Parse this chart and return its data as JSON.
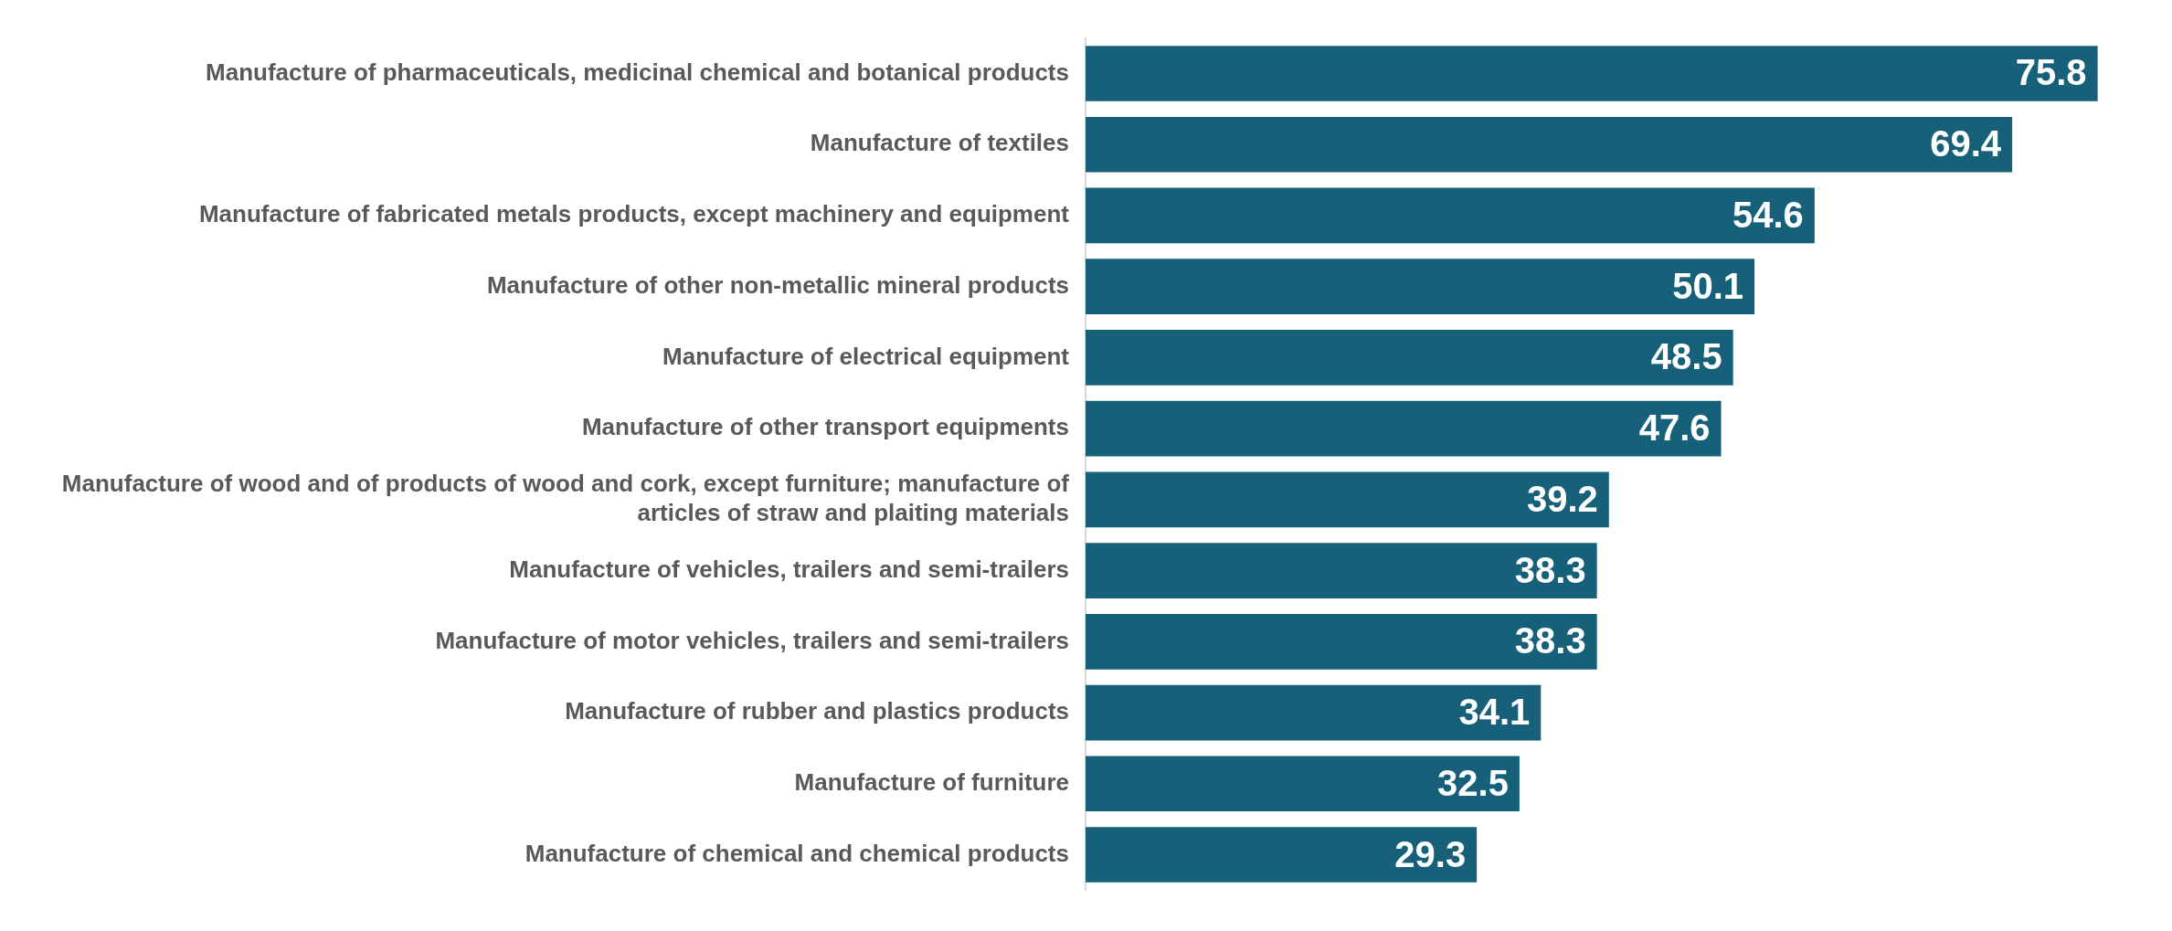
{
  "chart_data": {
    "type": "bar",
    "orientation": "horizontal",
    "categories": [
      "Manufacture of pharmaceuticals, medicinal chemical and botanical products",
      "Manufacture of textiles",
      "Manufacture of fabricated metals products, except machinery and equipment",
      "Manufacture of other non-metallic mineral products",
      "Manufacture of electrical equipment",
      "Manufacture of other transport equipments",
      "Manufacture of wood and of products of wood and cork, except furniture; manufacture of articles of straw and plaiting materials",
      "Manufacture of vehicles, trailers and semi-trailers",
      "Manufacture of motor vehicles, trailers and semi-trailers",
      "Manufacture of rubber and plastics products",
      "Manufacture of furniture",
      "Manufacture of chemical and chemical products"
    ],
    "values": [
      75.8,
      69.4,
      54.6,
      50.1,
      48.5,
      47.6,
      39.2,
      38.3,
      38.3,
      34.1,
      32.5,
      29.3
    ],
    "color": "#16607a",
    "data_labels": true,
    "grid": false,
    "legend": false,
    "tick_labels": "y"
  }
}
